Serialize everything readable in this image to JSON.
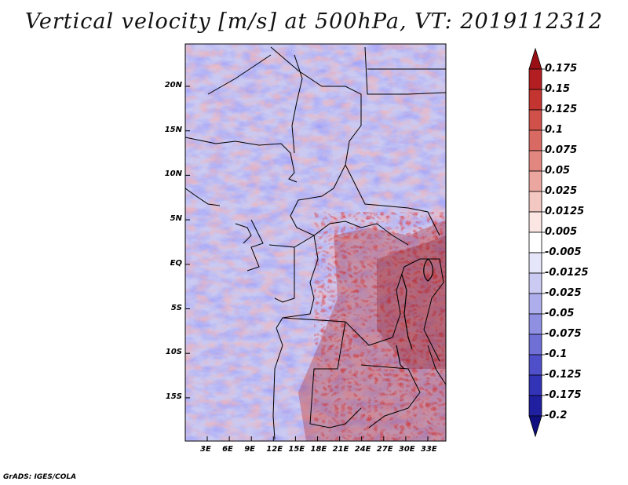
{
  "title": "Vertical velocity [m/s] at 500hPa, VT: 2019112312",
  "footer": "GrADS: IGES/COLA",
  "map": {
    "lat_labels": [
      "20N",
      "15N",
      "10N",
      "5N",
      "EQ",
      "5S",
      "10S",
      "15S"
    ],
    "lon_labels": [
      "3E",
      "6E",
      "9E",
      "12E",
      "15E",
      "18E",
      "21E",
      "24E",
      "27E",
      "30E",
      "33E"
    ]
  },
  "colorbar": {
    "labels": [
      "0.175",
      "0.15",
      "0.125",
      "0.1",
      "0.075",
      "0.05",
      "0.025",
      "0.0125",
      "0.005",
      "-0.005",
      "-0.0125",
      "-0.025",
      "-0.05",
      "-0.075",
      "-0.1",
      "-0.125",
      "-0.175",
      "-0.2"
    ],
    "colors": [
      "#9a0f16",
      "#b31e22",
      "#c43430",
      "#d0504a",
      "#d96a63",
      "#e2877f",
      "#eba79f",
      "#f3c8c2",
      "#fbe6e3",
      "#ffffff",
      "#e6e6fb",
      "#cacaf3",
      "#aeaeec",
      "#9090e2",
      "#6f6fd6",
      "#4f4fc9",
      "#3333b8",
      "#1f1fa0",
      "#101080"
    ]
  }
}
